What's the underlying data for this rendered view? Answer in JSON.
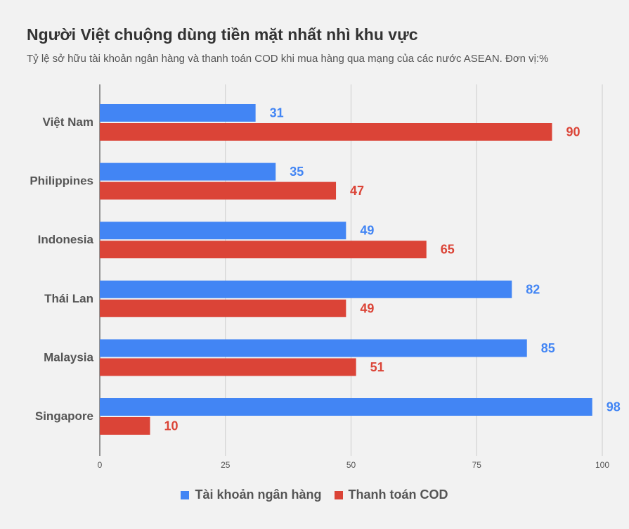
{
  "title": "Người Việt chuộng dùng tiền mặt nhất nhì khu vực",
  "subtitle": "Tỷ lệ sở hữu tài khoản ngân hàng và thanh toán COD khi mua hàng qua mạng của các nước ASEAN. Đơn vị:%",
  "colors": {
    "bank": "#4285f4",
    "cod": "#db4437",
    "grid": "#cccccc",
    "axis": "#333333"
  },
  "chart_data": {
    "type": "bar",
    "orientation": "horizontal",
    "categories": [
      "Việt Nam",
      "Philippines",
      "Indonesia",
      "Thái Lan",
      "Malaysia",
      "Singapore"
    ],
    "series": [
      {
        "name": "Tài khoản ngân hàng",
        "values": [
          31,
          35,
          49,
          82,
          85,
          98
        ]
      },
      {
        "name": "Thanh toán COD",
        "values": [
          90,
          47,
          65,
          49,
          51,
          10
        ]
      }
    ],
    "xlim": [
      0,
      100
    ],
    "xticks": [
      "0",
      "25",
      "50",
      "75",
      "100"
    ],
    "grid": true,
    "legend": "bottom"
  }
}
